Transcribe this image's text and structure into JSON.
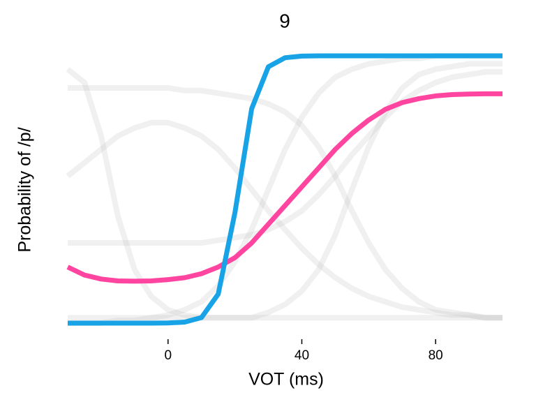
{
  "chart_data": {
    "type": "line",
    "title": "9",
    "x_label": "VOT (ms)",
    "y_label": "Probability of /p/",
    "x": [
      -30,
      -25,
      -20,
      -15,
      -10,
      -5,
      0,
      5,
      10,
      15,
      20,
      25,
      30,
      35,
      40,
      45,
      50,
      55,
      60,
      65,
      70,
      75,
      80,
      85,
      90,
      95,
      100
    ],
    "xlim": [
      -30,
      100
    ],
    "xticks": [
      0,
      40,
      80
    ],
    "ylim": [
      0,
      1
    ],
    "series": [
      {
        "color": "#bbbbbb",
        "values": [
          0,
          0,
          0,
          0.01,
          0.01,
          0.02,
          0.03,
          0.05,
          0.08,
          0.14,
          0.23,
          0.35,
          0.5,
          0.65,
          0.77,
          0.86,
          0.92,
          0.95,
          0.97,
          0.98,
          0.99,
          0.99,
          1,
          1,
          1,
          1,
          1
        ]
      },
      {
        "color": "#bbbbbb",
        "values": [
          0.95,
          0.9,
          0.7,
          0.4,
          0.2,
          0.1,
          0.05,
          0.03,
          0.02,
          0.02,
          0.02,
          0.02,
          0.02,
          0.02,
          0.02,
          0.02,
          0.02,
          0.02,
          0.02,
          0.02,
          0.02,
          0.02,
          0.02,
          0.02,
          0.02,
          0.02,
          0.02
        ]
      },
      {
        "color": "#bbbbbb",
        "values": [
          0.02,
          0.02,
          0.02,
          0.02,
          0.02,
          0.02,
          0.02,
          0.02,
          0.02,
          0.02,
          0.02,
          0.02,
          0.04,
          0.07,
          0.12,
          0.2,
          0.33,
          0.5,
          0.66,
          0.79,
          0.88,
          0.93,
          0.95,
          0.96,
          0.97,
          0.97,
          0.97
        ]
      },
      {
        "color": "#bbbbbb",
        "values": [
          0.55,
          0.6,
          0.65,
          0.7,
          0.73,
          0.75,
          0.75,
          0.73,
          0.7,
          0.65,
          0.58,
          0.5,
          0.42,
          0.35,
          0.28,
          0.22,
          0.17,
          0.13,
          0.1,
          0.08,
          0.06,
          0.05,
          0.04,
          0.03,
          0.03,
          0.02,
          0.02
        ]
      },
      {
        "color": "#bbbbbb",
        "values": [
          0.88,
          0.88,
          0.88,
          0.88,
          0.88,
          0.88,
          0.88,
          0.87,
          0.87,
          0.86,
          0.85,
          0.84,
          0.82,
          0.79,
          0.74,
          0.66,
          0.55,
          0.42,
          0.3,
          0.2,
          0.13,
          0.08,
          0.05,
          0.04,
          0.03,
          0.02,
          0.02
        ]
      },
      {
        "color": "#bbbbbb",
        "values": [
          0.3,
          0.3,
          0.3,
          0.3,
          0.3,
          0.3,
          0.3,
          0.3,
          0.3,
          0.31,
          0.32,
          0.33,
          0.35,
          0.38,
          0.42,
          0.48,
          0.55,
          0.63,
          0.7,
          0.77,
          0.83,
          0.87,
          0.9,
          0.92,
          0.93,
          0.94,
          0.94
        ]
      },
      {
        "color": "#ff45a0",
        "values": [
          0.21,
          0.18,
          0.165,
          0.158,
          0.157,
          0.158,
          0.163,
          0.17,
          0.185,
          0.21,
          0.245,
          0.3,
          0.37,
          0.44,
          0.51,
          0.58,
          0.65,
          0.71,
          0.76,
          0.8,
          0.825,
          0.84,
          0.85,
          0.855,
          0.857,
          0.858,
          0.858
        ]
      },
      {
        "color": "#17a3e6",
        "values": [
          0,
          0,
          0,
          0,
          0,
          0.0001,
          0.0006,
          0.004,
          0.021,
          0.109,
          0.413,
          0.802,
          0.959,
          0.993,
          0.999,
          1,
          1,
          1,
          1,
          1,
          1,
          1,
          1,
          1,
          1,
          1,
          1
        ]
      }
    ]
  }
}
